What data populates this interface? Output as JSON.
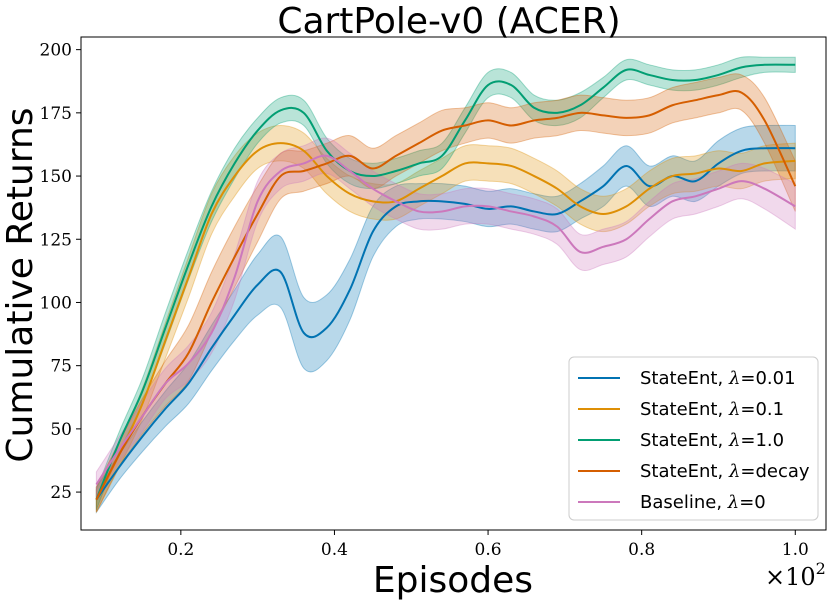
{
  "chart_data": {
    "type": "line",
    "title": "CartPole-v0 (ACER)",
    "xlabel": "Episodes",
    "ylabel": "Cumulative Returns",
    "x_scale_note": "×10",
    "x_scale_exp": "2",
    "xlim": [
      0.07,
      1.04
    ],
    "ylim": [
      10,
      205
    ],
    "xticks": [
      0.2,
      0.4,
      0.6,
      0.8,
      1.0
    ],
    "xtick_labels": [
      "0.2",
      "0.4",
      "0.6",
      "0.8",
      "1.0"
    ],
    "yticks": [
      25,
      50,
      75,
      100,
      125,
      150,
      175,
      200
    ],
    "ytick_labels": [
      "25",
      "50",
      "75",
      "100",
      "125",
      "150",
      "175",
      "200"
    ],
    "legend_position": "bottom-right",
    "x": [
      0.09,
      0.12,
      0.15,
      0.18,
      0.21,
      0.24,
      0.27,
      0.3,
      0.33,
      0.36,
      0.39,
      0.42,
      0.45,
      0.48,
      0.51,
      0.54,
      0.57,
      0.6,
      0.63,
      0.66,
      0.69,
      0.72,
      0.75,
      0.78,
      0.81,
      0.84,
      0.87,
      0.9,
      0.93,
      0.96,
      1.0
    ],
    "series": [
      {
        "name": "StateEnt, λ=0.01",
        "legend_prefix": "StateEnt, ",
        "legend_value": "=0.01",
        "color": "#0173b2",
        "values": [
          22,
          35,
          47,
          58,
          68,
          82,
          95,
          107,
          112,
          88,
          90,
          105,
          128,
          138,
          140,
          140,
          139,
          137,
          138,
          136,
          135,
          140,
          146,
          154,
          146,
          150,
          148,
          155,
          160,
          161,
          161
        ],
        "band": [
          5,
          5,
          6,
          7,
          8,
          9,
          10,
          12,
          14,
          14,
          13,
          12,
          10,
          8,
          7,
          7,
          7,
          7,
          7,
          7,
          7,
          7,
          8,
          8,
          8,
          8,
          8,
          9,
          9,
          9,
          9
        ]
      },
      {
        "name": "StateEnt, λ=0.1",
        "legend_prefix": "StateEnt, ",
        "legend_value": "=0.1",
        "color": "#de8f05",
        "values": [
          22,
          40,
          60,
          85,
          110,
          135,
          150,
          160,
          163,
          160,
          150,
          143,
          140,
          140,
          145,
          150,
          155,
          155,
          154,
          150,
          145,
          138,
          135,
          138,
          145,
          150,
          151,
          153,
          152,
          155,
          156
        ],
        "band": [
          5,
          5,
          6,
          7,
          8,
          8,
          8,
          7,
          7,
          7,
          7,
          7,
          7,
          7,
          7,
          7,
          7,
          7,
          7,
          7,
          7,
          7,
          7,
          7,
          7,
          7,
          7,
          7,
          7,
          7,
          7
        ]
      },
      {
        "name": "StateEnt, λ=1.0",
        "legend_prefix": "StateEnt, ",
        "legend_value": "=1.0",
        "color": "#029e73",
        "values": [
          22,
          45,
          65,
          90,
          115,
          138,
          155,
          168,
          176,
          175,
          160,
          152,
          150,
          152,
          155,
          158,
          172,
          186,
          186,
          177,
          175,
          178,
          185,
          192,
          190,
          188,
          188,
          190,
          193,
          194,
          194
        ],
        "band": [
          4,
          4,
          5,
          6,
          6,
          6,
          6,
          5,
          5,
          5,
          5,
          5,
          5,
          5,
          5,
          5,
          5,
          5,
          5,
          5,
          5,
          5,
          4,
          4,
          4,
          4,
          4,
          4,
          4,
          3,
          3
        ]
      },
      {
        "name": "StateEnt, λ=decay",
        "legend_prefix": "StateEnt, ",
        "legend_value": "=decay",
        "color": "#d55e00",
        "values": [
          22,
          40,
          55,
          68,
          80,
          100,
          118,
          135,
          150,
          152,
          155,
          158,
          153,
          158,
          163,
          168,
          170,
          172,
          170,
          172,
          173,
          175,
          174,
          173,
          174,
          178,
          180,
          182,
          183,
          172,
          146
        ],
        "band": [
          5,
          5,
          7,
          9,
          11,
          12,
          12,
          11,
          9,
          8,
          8,
          8,
          8,
          8,
          8,
          8,
          7,
          7,
          7,
          7,
          7,
          7,
          7,
          7,
          7,
          7,
          7,
          7,
          7,
          9,
          10
        ]
      },
      {
        "name": "Baseline, λ=0",
        "legend_prefix": "Baseline, ",
        "legend_value": "=0",
        "color": "#cc78bc",
        "values": [
          28,
          42,
          55,
          68,
          76,
          88,
          110,
          140,
          152,
          155,
          158,
          152,
          145,
          140,
          136,
          136,
          138,
          138,
          136,
          134,
          130,
          120,
          122,
          125,
          133,
          140,
          142,
          145,
          148,
          145,
          138
        ],
        "band": [
          5,
          5,
          6,
          6,
          7,
          8,
          9,
          8,
          7,
          7,
          7,
          7,
          7,
          7,
          7,
          7,
          7,
          7,
          7,
          7,
          7,
          7,
          7,
          7,
          7,
          7,
          7,
          7,
          7,
          8,
          9
        ]
      }
    ]
  }
}
